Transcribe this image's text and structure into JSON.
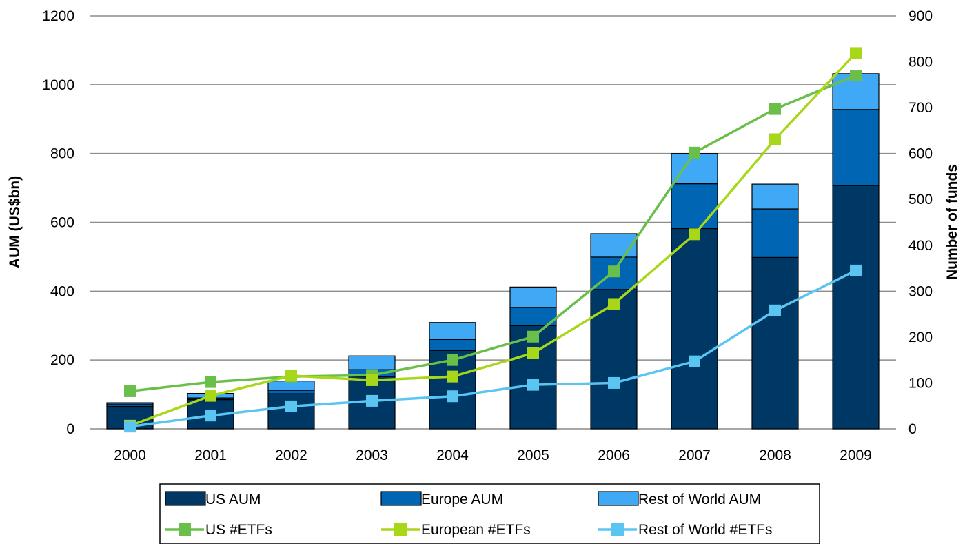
{
  "chart_data": {
    "type": "bar",
    "categories": [
      "2000",
      "2001",
      "2002",
      "2003",
      "2004",
      "2005",
      "2006",
      "2007",
      "2008",
      "2009"
    ],
    "bar_series": [
      {
        "name": "US AUM",
        "color": "#003865",
        "values": [
          65,
          85,
          102,
          152,
          228,
          300,
          405,
          582,
          498,
          707
        ]
      },
      {
        "name": "Europe AUM",
        "color": "#0066b3",
        "values": [
          7,
          5,
          10,
          20,
          32,
          53,
          94,
          130,
          141,
          221
        ]
      },
      {
        "name": "Rest of World AUM",
        "color": "#3fa9f5",
        "values": [
          4,
          13,
          27,
          40,
          49,
          59,
          68,
          88,
          72,
          104
        ]
      }
    ],
    "line_series": [
      {
        "name": "US #ETFs",
        "color": "#6abf4b",
        "values": [
          82,
          102,
          114,
          117,
          150,
          201,
          343,
          602,
          697,
          770
        ]
      },
      {
        "name": "European #ETFs",
        "color": "#a8d619",
        "values": [
          7,
          72,
          116,
          106,
          114,
          165,
          272,
          424,
          631,
          819
        ]
      },
      {
        "name": "Rest of World #ETFs",
        "color": "#5bc5f2",
        "values": [
          5,
          29,
          49,
          61,
          71,
          96,
          100,
          147,
          258,
          345
        ]
      }
    ],
    "ylabel": "AUM (US$bn)",
    "y2label": "Number of funds",
    "ylim": [
      0,
      1200
    ],
    "y_ticks": [
      0,
      200,
      400,
      600,
      800,
      1000,
      1200
    ],
    "y2lim": [
      0,
      900
    ],
    "y2_ticks": [
      0,
      100,
      200,
      300,
      400,
      500,
      600,
      700,
      800,
      900
    ],
    "grid": true,
    "legend_position": "bottom"
  }
}
